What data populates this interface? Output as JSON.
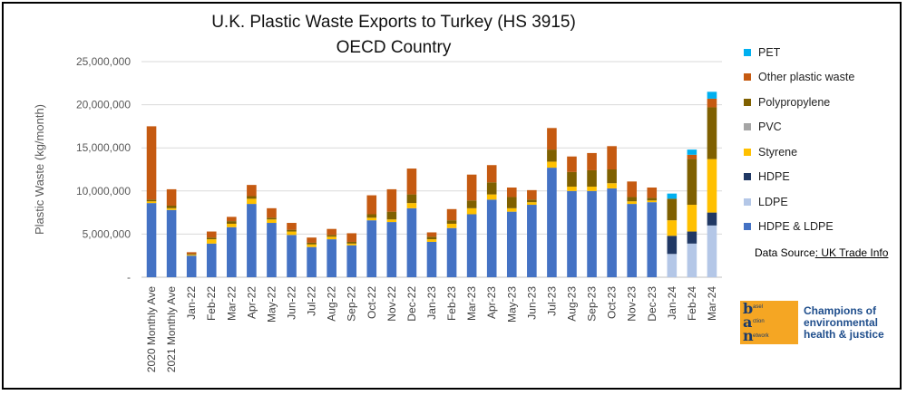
{
  "chart_data": {
    "type": "bar",
    "stacked": true,
    "title": "U.K. Plastic Waste Exports to Turkey (HS 3915)",
    "subtitle": "OECD Country",
    "ylabel": "Plastic Waste (kg/month)",
    "xlabel": "",
    "ylim": [
      0,
      25000000
    ],
    "yticks": [
      "-",
      "5,000,000",
      "10,000,000",
      "15,000,000",
      "20,000,000",
      "25,000,000"
    ],
    "categories": [
      "2020 Monthly Ave",
      "2021 Monthly Ave",
      "Jan-22",
      "Feb-22",
      "Mar-22",
      "Apr-22",
      "May-22",
      "Jun-22",
      "Jul-22",
      "Aug-22",
      "Sep-22",
      "Oct-22",
      "Nov-22",
      "Dec-22",
      "Jan-23",
      "Feb-23",
      "Mar-23",
      "Apr-23",
      "May-23",
      "Jun-23",
      "Jul-23",
      "Aug-23",
      "Sep-23",
      "Oct-23",
      "Nov-23",
      "Dec-23",
      "Jan-24",
      "Feb-24",
      "Mar-24"
    ],
    "series": [
      {
        "name": "HDPE & LDPE",
        "color": "#4472c4",
        "values": [
          8600000,
          7800000,
          2500000,
          3900000,
          5800000,
          8500000,
          6300000,
          4900000,
          3500000,
          4400000,
          3700000,
          6600000,
          6400000,
          8000000,
          4100000,
          5700000,
          7300000,
          9000000,
          7600000,
          8400000,
          12700000,
          10000000,
          10000000,
          10300000,
          8500000,
          8700000,
          0,
          0,
          0
        ]
      },
      {
        "name": "LDPE",
        "color": "#b4c7e7",
        "values": [
          0,
          0,
          0,
          0,
          0,
          0,
          0,
          0,
          0,
          0,
          0,
          0,
          0,
          0,
          0,
          0,
          0,
          0,
          0,
          0,
          0,
          0,
          0,
          0,
          0,
          0,
          2700000,
          3900000,
          6000000
        ]
      },
      {
        "name": "HDPE",
        "color": "#203864",
        "values": [
          0,
          0,
          0,
          0,
          0,
          0,
          0,
          0,
          0,
          0,
          0,
          0,
          0,
          0,
          0,
          0,
          0,
          0,
          0,
          0,
          0,
          0,
          0,
          0,
          0,
          0,
          2100000,
          1400000,
          1500000
        ]
      },
      {
        "name": "Styrene",
        "color": "#ffc000",
        "values": [
          200000,
          200000,
          100000,
          500000,
          400000,
          600000,
          400000,
          400000,
          300000,
          300000,
          200000,
          300000,
          300000,
          600000,
          300000,
          500000,
          700000,
          600000,
          400000,
          300000,
          700000,
          500000,
          500000,
          600000,
          300000,
          200000,
          1800000,
          3100000,
          6200000
        ]
      },
      {
        "name": "PVC",
        "color": "#a5a5a5",
        "values": [
          0,
          0,
          0,
          0,
          0,
          0,
          0,
          0,
          0,
          0,
          0,
          0,
          0,
          0,
          0,
          0,
          0,
          0,
          0,
          0,
          0,
          0,
          0,
          0,
          0,
          0,
          0,
          0,
          0
        ]
      },
      {
        "name": "Polypropylene",
        "color": "#7f6000",
        "values": [
          200000,
          300000,
          100000,
          200000,
          300000,
          300000,
          200000,
          200000,
          200000,
          200000,
          200000,
          400000,
          900000,
          1000000,
          300000,
          400000,
          900000,
          1400000,
          1300000,
          300000,
          1400000,
          1700000,
          1900000,
          1600000,
          500000,
          300000,
          2500000,
          5300000,
          6000000
        ]
      },
      {
        "name": "Other plastic waste",
        "color": "#c55a11",
        "values": [
          8500000,
          1900000,
          200000,
          700000,
          500000,
          1300000,
          1100000,
          800000,
          600000,
          700000,
          1000000,
          2200000,
          2600000,
          3000000,
          500000,
          1300000,
          3000000,
          2000000,
          1100000,
          1100000,
          2500000,
          1800000,
          2000000,
          2700000,
          1800000,
          1200000,
          0,
          500000,
          1000000
        ]
      },
      {
        "name": "PET",
        "color": "#00b0f0",
        "values": [
          0,
          0,
          0,
          0,
          0,
          0,
          0,
          0,
          0,
          0,
          0,
          0,
          0,
          0,
          0,
          0,
          0,
          0,
          0,
          0,
          0,
          0,
          0,
          0,
          0,
          0,
          600000,
          600000,
          800000
        ]
      }
    ],
    "legend_order": [
      "PET",
      "Other plastic waste",
      "Polypropylene",
      "PVC",
      "Styrene",
      "HDPE",
      "LDPE",
      "HDPE & LDPE"
    ],
    "legend_position": "right",
    "grid": true
  },
  "source": {
    "prefix": "Data Source",
    "link": ": UK Trade Info"
  },
  "logo": {
    "letters": [
      "b",
      "a",
      "n"
    ],
    "words": [
      "asel",
      "ction",
      "etwork"
    ],
    "tagline": [
      "Champions of",
      "environmental",
      "health & justice"
    ]
  }
}
